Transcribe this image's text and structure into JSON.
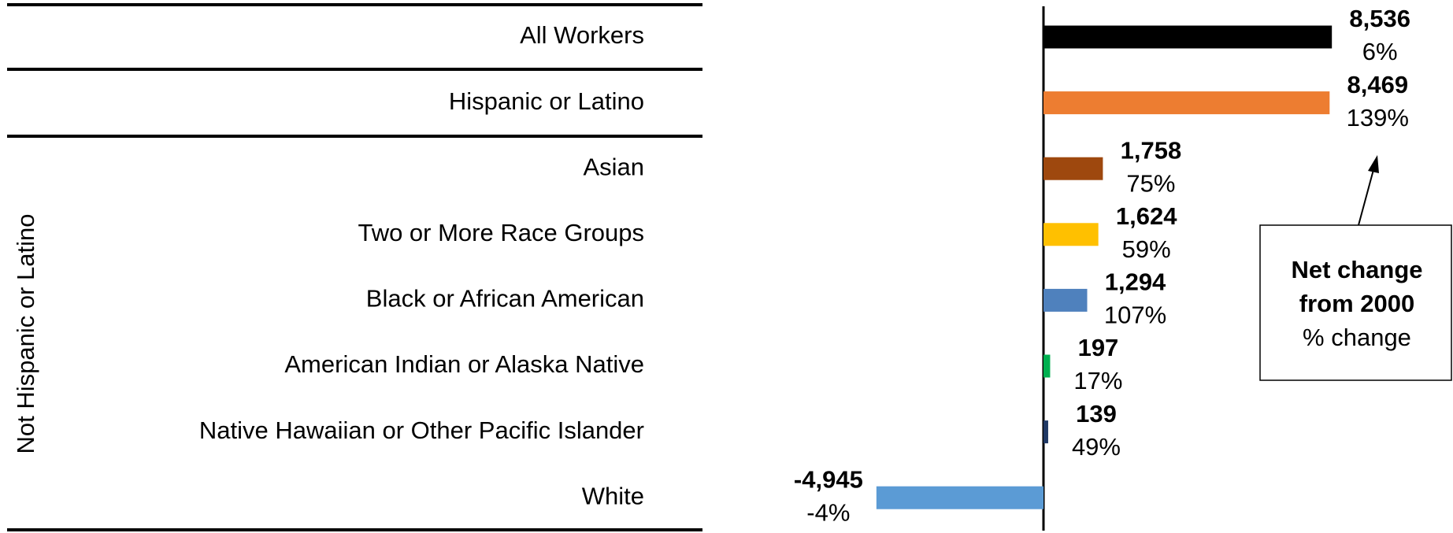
{
  "chart_data": {
    "type": "hbar",
    "categories": [
      "All Workers",
      "Hispanic or Latino",
      "Asian",
      "Two or More Race Groups",
      "Black or African American",
      "American Indian or Alaska Native",
      "Native Hawaiian or Other Pacific Islander",
      "White"
    ],
    "group_label": "Not Hispanic or Latino",
    "series": [
      {
        "values": [
          8536,
          8469,
          1758,
          1624,
          1294,
          197,
          139,
          -4945
        ],
        "value_labels": [
          "8,536",
          "8,469",
          "1,758",
          "1,624",
          "1,294",
          "197",
          "139",
          "-4,945"
        ],
        "colors": [
          "#000000",
          "#ED7D31",
          "#9E480E",
          "#FFC000",
          "#4F81BD",
          "#00B050",
          "#1F3864",
          "#5B9BD5"
        ]
      },
      {
        "values": [
          6,
          139,
          75,
          59,
          107,
          17,
          49,
          -4
        ],
        "value_labels": [
          "6%",
          "139%",
          "75%",
          "59%",
          "107%",
          "17%",
          "49%",
          "-4%"
        ]
      }
    ],
    "annotation": {
      "title": [
        "Net change",
        "from 2000"
      ],
      "subtitle": "% change"
    }
  }
}
